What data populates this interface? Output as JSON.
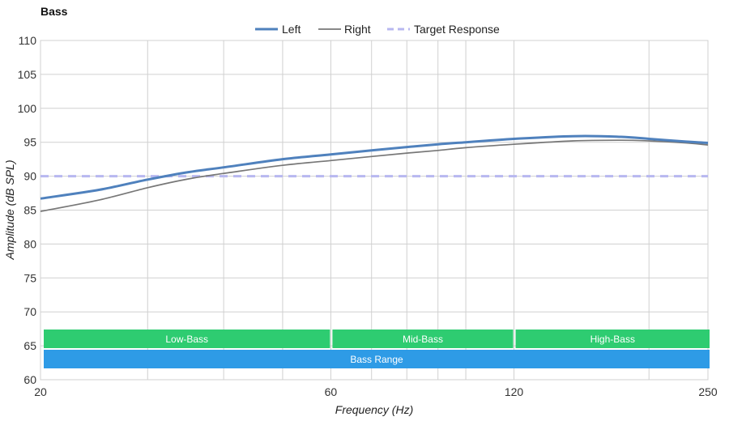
{
  "chart_data": {
    "type": "line",
    "title": "Bass",
    "xlabel": "Frequency (Hz)",
    "ylabel": "Amplitude (dB SPL)",
    "x_scale": "log",
    "xlim": [
      20,
      250
    ],
    "ylim": [
      60,
      110
    ],
    "x_ticks": [
      20,
      60,
      120,
      250
    ],
    "x_minor_gridlines": [
      30,
      40,
      50,
      70,
      80,
      90,
      100,
      200
    ],
    "y_ticks": [
      60,
      65,
      70,
      75,
      80,
      85,
      90,
      95,
      100,
      105,
      110
    ],
    "grid": true,
    "legend_position": "top-center",
    "series": [
      {
        "name": "Left",
        "color": "#4f81bd",
        "style": "solid-thick",
        "x": [
          20,
          25,
          30,
          35,
          40,
          50,
          60,
          70,
          80,
          90,
          100,
          120,
          150,
          180,
          200,
          230,
          250
        ],
        "y": [
          86.7,
          88.0,
          89.5,
          90.6,
          91.3,
          92.5,
          93.2,
          93.8,
          94.3,
          94.7,
          95.0,
          95.5,
          95.9,
          95.8,
          95.5,
          95.1,
          94.9
        ]
      },
      {
        "name": "Right",
        "color": "#777777",
        "style": "solid-thin",
        "x": [
          20,
          25,
          30,
          35,
          40,
          50,
          60,
          70,
          80,
          90,
          100,
          120,
          150,
          180,
          200,
          230,
          250
        ],
        "y": [
          84.8,
          86.5,
          88.3,
          89.6,
          90.4,
          91.6,
          92.3,
          92.9,
          93.4,
          93.8,
          94.2,
          94.7,
          95.2,
          95.3,
          95.2,
          94.9,
          94.6
        ]
      },
      {
        "name": "Target Response",
        "color": "#b8b8f0",
        "style": "dashed",
        "x": [
          20,
          250
        ],
        "y": [
          90,
          90
        ]
      }
    ],
    "bands": [
      {
        "label": "Low-Bass",
        "from": 20,
        "to": 60,
        "color": "#2ecc71",
        "row": 0
      },
      {
        "label": "Mid-Bass",
        "from": 60,
        "to": 120,
        "color": "#2ecc71",
        "row": 0
      },
      {
        "label": "High-Bass",
        "from": 120,
        "to": 250,
        "color": "#2ecc71",
        "row": 0
      },
      {
        "label": "Bass Range",
        "from": 20,
        "to": 250,
        "color": "#2e9be6",
        "row": 1
      }
    ]
  }
}
